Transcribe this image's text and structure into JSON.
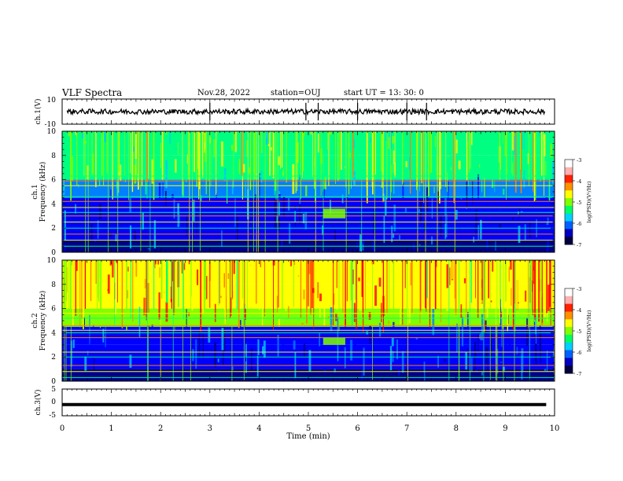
{
  "header": {
    "title": "VLF Spectra",
    "date": "Nov.28, 2022",
    "station": "station=OUJ",
    "start": "start UT =  13: 30: 0"
  },
  "colors": {
    "colormap": [
      "#000000",
      "#00008b",
      "#0000ff",
      "#00bfff",
      "#00ff80",
      "#7fff00",
      "#ffff00",
      "#ff8c00",
      "#ff0000",
      "#ff69b4",
      "#ffffff"
    ]
  },
  "chart_data": [
    {
      "type": "line",
      "ylabel": "ch.1(V)",
      "ylim": [
        -10,
        10
      ],
      "yticks": [
        "10",
        "-10"
      ],
      "xlim": [
        0,
        10
      ],
      "description_values": {
        "baseline": 0,
        "noise_amplitude": 2
      },
      "spikes_x": [
        3.0,
        4.95,
        5.2,
        6.0,
        7.0,
        7.4
      ]
    },
    {
      "type": "heatmap",
      "ylabel": "ch.1\nFrequency (kHz)",
      "ylabel_top": "ch.1",
      "ylabel_bottom": "Frequency (kHz)",
      "ylim": [
        0,
        10
      ],
      "yticks": [
        "0",
        "2",
        "4",
        "6",
        "8",
        "10"
      ],
      "xlim": [
        0,
        10
      ],
      "colorbar": {
        "label": "log(PSD)(V²/Hz)",
        "ticks": [
          "-3",
          "-4",
          "-5",
          "-6",
          "-7"
        ],
        "range": [
          -7,
          -3
        ]
      },
      "horizontal_lines_khz": [
        0.5,
        1.0,
        1.5,
        2.0,
        2.5,
        3.0,
        3.3,
        3.7,
        4.2,
        4.6,
        5.5,
        5.9,
        6.3
      ],
      "patch": {
        "x": [
          5.3,
          5.75
        ],
        "y_khz": [
          2.8,
          3.6
        ]
      }
    },
    {
      "type": "heatmap",
      "ylabel": "ch.2\nFrequency (kHz)",
      "ylabel_top": "ch.2",
      "ylabel_bottom": "Frequency (kHz)",
      "ylim": [
        0,
        10
      ],
      "yticks": [
        "0",
        "2",
        "4",
        "6",
        "8",
        "10"
      ],
      "xlim": [
        0,
        10
      ],
      "colorbar": {
        "label": "log(PSD)(V²/Hz)",
        "ticks": [
          "-3",
          "-4",
          "-5",
          "-6",
          "-7"
        ],
        "range": [
          -7,
          -3
        ]
      },
      "horizontal_lines_khz": [
        0.3,
        0.8,
        1.3,
        2.0,
        2.4,
        3.6,
        4.0,
        4.2,
        4.6,
        5.2,
        5.6
      ],
      "patch": {
        "x": [
          5.3,
          5.75
        ],
        "y_khz": [
          3.0,
          3.6
        ]
      }
    },
    {
      "type": "line",
      "ylabel": "ch.3(V)",
      "ylim": [
        -5,
        5
      ],
      "yticks": [
        "5",
        "0",
        "-5"
      ],
      "xlim": [
        0,
        10
      ],
      "values": {
        "level": -0.8
      }
    }
  ],
  "xaxis": {
    "label": "Time (min)",
    "ticks": [
      "0",
      "1",
      "2",
      "3",
      "4",
      "5",
      "6",
      "7",
      "8",
      "9",
      "10"
    ]
  }
}
